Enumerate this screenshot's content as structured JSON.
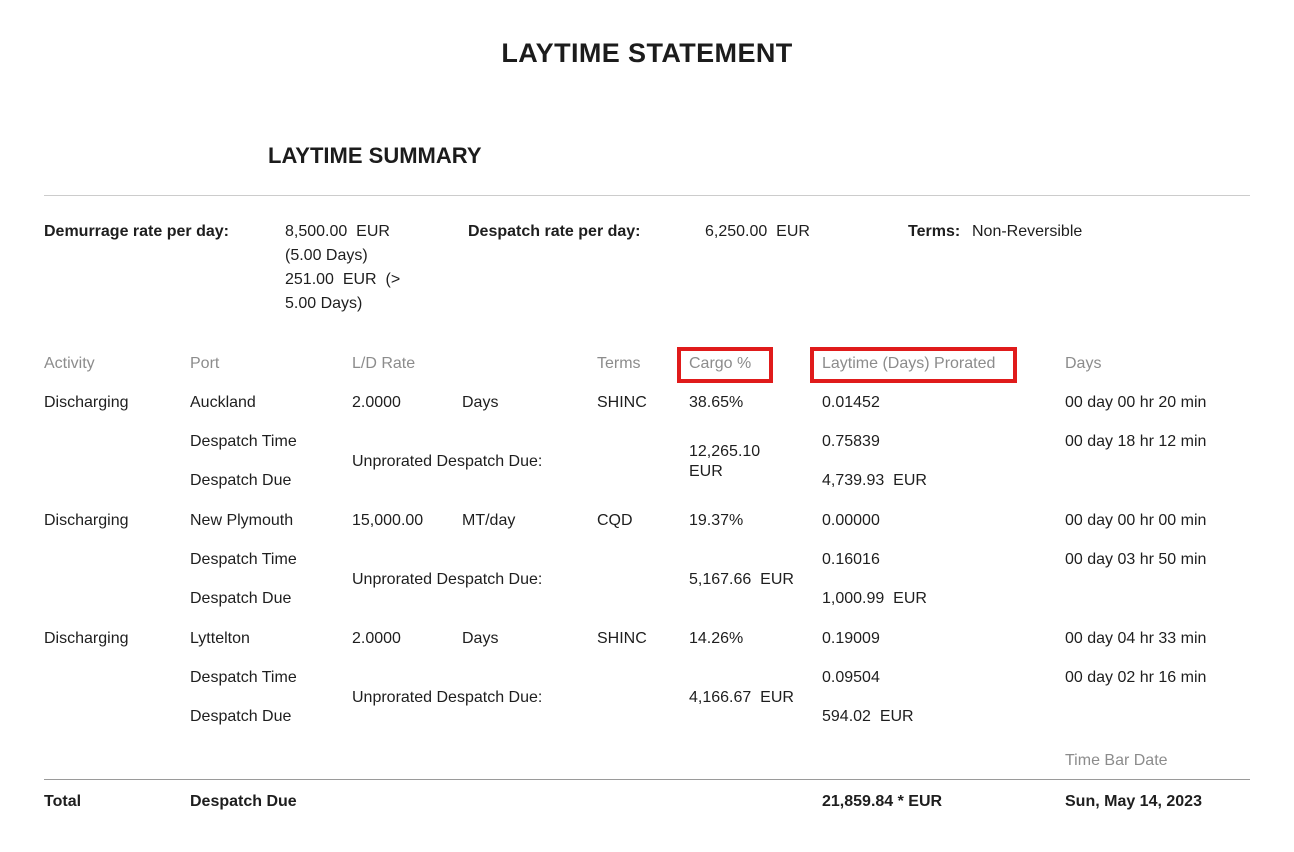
{
  "page_title": "LAYTIME STATEMENT",
  "section_title": "LAYTIME SUMMARY",
  "rates": {
    "demurrage_label": "Demurrage rate per day:",
    "demurrage_value": "8,500.00  EUR\n(5.00 Days)\n251.00  EUR  (>\n5.00 Days)",
    "despatch_label": "Despatch rate per day:",
    "despatch_value": "6,250.00  EUR",
    "terms_label": "Terms:",
    "terms_value": "Non-Reversible"
  },
  "table": {
    "headers": {
      "activity": "Activity",
      "port": "Port",
      "ld_rate": "L/D Rate",
      "terms": "Terms",
      "cargo_pct": "Cargo %",
      "laytime_prorated": "Laytime (Days) Prorated",
      "days": "Days"
    },
    "groups": [
      {
        "activity": "Discharging",
        "port": "Auckland",
        "ld_rate": "2.0000",
        "ld_unit": "Days",
        "terms": "SHINC",
        "cargo_pct": "38.65%",
        "laytime": "0.01452",
        "days": "00 day 00 hr 20 min",
        "despatch_time_label": "Despatch Time",
        "despatch_due_label": "Despatch Due",
        "unprorated_label": "Unprorated Despatch Due:",
        "unprorated_value": "12,265.10\nEUR",
        "despatch_time_laytime": "0.75839",
        "despatch_time_days": "00 day 18 hr 12 min",
        "despatch_due_value": "4,739.93  EUR"
      },
      {
        "activity": "Discharging",
        "port": "New Plymouth",
        "ld_rate": "15,000.00",
        "ld_unit": "MT/day",
        "terms": "CQD",
        "cargo_pct": "19.37%",
        "laytime": "0.00000",
        "days": "00 day 00 hr 00 min",
        "despatch_time_label": "Despatch Time",
        "despatch_due_label": "Despatch Due",
        "unprorated_label": "Unprorated Despatch Due:",
        "unprorated_value": "5,167.66  EUR",
        "despatch_time_laytime": "0.16016",
        "despatch_time_days": "00 day 03 hr 50 min",
        "despatch_due_value": "1,000.99  EUR"
      },
      {
        "activity": "Discharging",
        "port": "Lyttelton",
        "ld_rate": "2.0000",
        "ld_unit": "Days",
        "terms": "SHINC",
        "cargo_pct": "14.26%",
        "laytime": "0.19009",
        "days": "00 day 04 hr 33 min",
        "despatch_time_label": "Despatch Time",
        "despatch_due_label": "Despatch Due",
        "unprorated_label": "Unprorated Despatch Due:",
        "unprorated_value": "4,166.67  EUR",
        "despatch_time_laytime": "0.09504",
        "despatch_time_days": "00 day 02 hr 16 min",
        "despatch_due_value": "594.02  EUR"
      }
    ]
  },
  "footer": {
    "time_bar_date_label": "Time Bar Date",
    "total_label": "Total",
    "total_type": "Despatch Due",
    "total_value": "21,859.84 * EUR",
    "total_date": "Sun, May 14, 2023"
  },
  "annotations": {
    "highlight_color": "#e01b1b"
  }
}
